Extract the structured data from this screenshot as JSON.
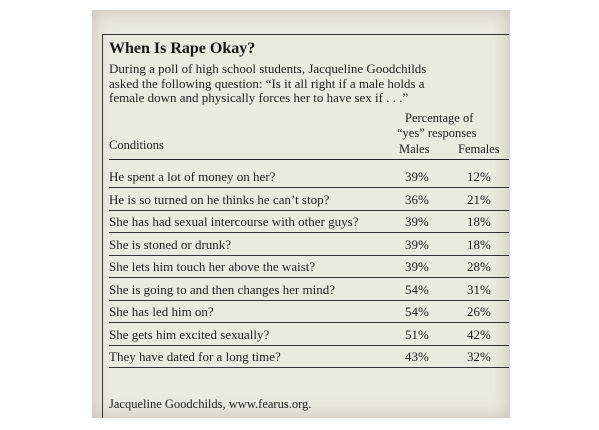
{
  "title": "When Is Rape Okay?",
  "intro_lines": [
    "During a poll of high school students, Jacqueline Goodchilds",
    "asked the following question: “Is it all right if a male holds a",
    "female down and physically forces her to have sex if . . .”"
  ],
  "table": {
    "conditions_header": "Conditions",
    "percentage_header_line1": "Percentage of",
    "percentage_header_line2": "“yes” responses",
    "males_header": "Males",
    "females_header": "Females",
    "rows": [
      {
        "condition": "He spent a lot of money on her?",
        "males": "39%",
        "females": "12%"
      },
      {
        "condition": "He is so turned on he thinks he can’t stop?",
        "males": "36%",
        "females": "21%"
      },
      {
        "condition": "She has had sexual intercourse with other guys?",
        "males": "39%",
        "females": "18%"
      },
      {
        "condition": "She is stoned or drunk?",
        "males": "39%",
        "females": "18%"
      },
      {
        "condition": "She lets him touch her above the waist?",
        "males": "39%",
        "females": "28%"
      },
      {
        "condition": "She is going to and then changes her mind?",
        "males": "54%",
        "females": "31%"
      },
      {
        "condition": "She has led him on?",
        "males": "54%",
        "females": "26%"
      },
      {
        "condition": "She gets him excited sexually?",
        "males": "51%",
        "females": "42%"
      },
      {
        "condition": "They have dated for a long time?",
        "males": "43%",
        "females": "32%"
      }
    ]
  },
  "source": "Jacqueline Goodchilds, www.fearus.org."
}
